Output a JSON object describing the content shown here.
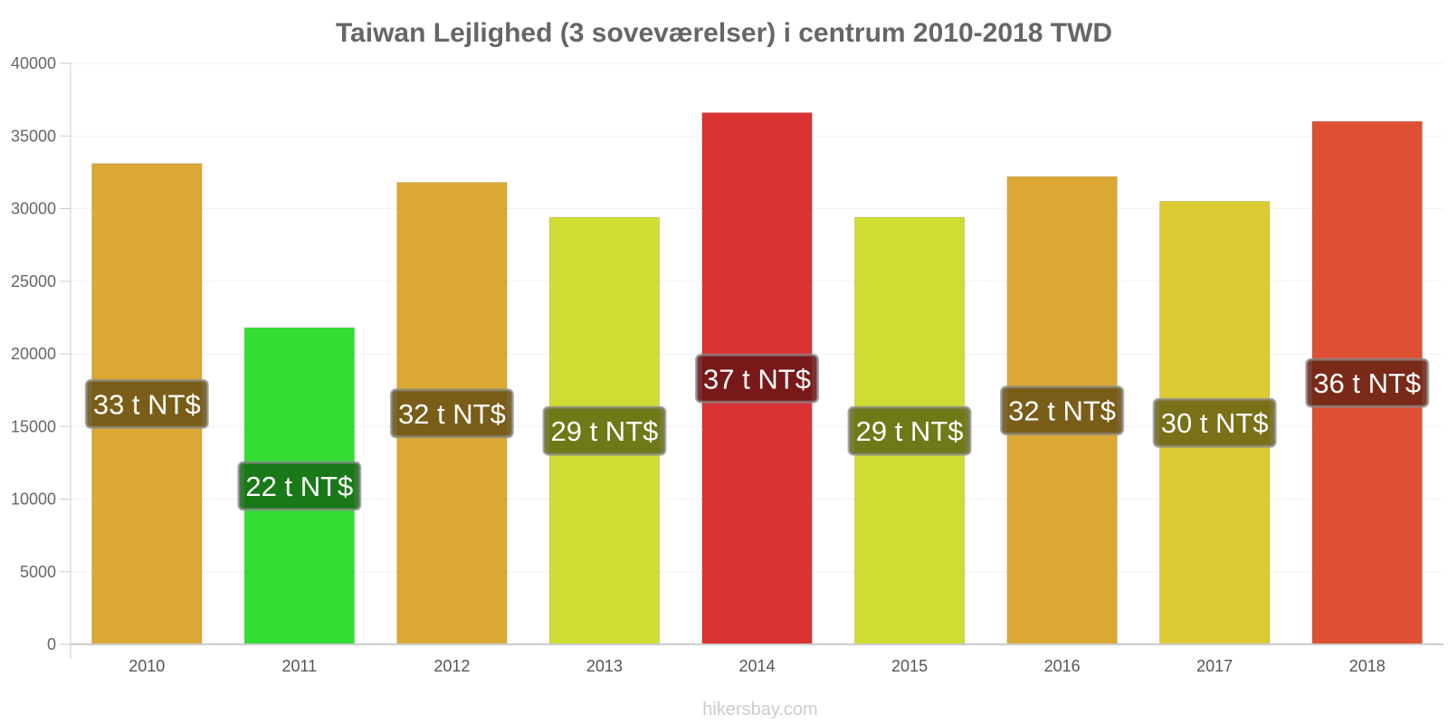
{
  "chart_data": {
    "type": "bar",
    "title": "Taiwan Lejlighed (3 soveværelser) i centrum 2010-2018 TWD",
    "xlabel": "",
    "ylabel": "",
    "categories": [
      "2010",
      "2011",
      "2012",
      "2013",
      "2014",
      "2015",
      "2016",
      "2017",
      "2018"
    ],
    "values": [
      33100,
      21800,
      31800,
      29400,
      36600,
      29400,
      32200,
      30500,
      36000
    ],
    "data_labels": [
      "33 t NT$",
      "22 t NT$",
      "32 t NT$",
      "29 t NT$",
      "37 t NT$",
      "29 t NT$",
      "32 t NT$",
      "30 t NT$",
      "36 t NT$"
    ],
    "colors": [
      "#dba833",
      "#33dd33",
      "#dba833",
      "#cfdd33",
      "#d93333",
      "#cfdd33",
      "#dba833",
      "#dccb33",
      "#dd5033"
    ],
    "label_bg_colors": [
      "#6b5214",
      "#166b14",
      "#6b5214",
      "#636b14",
      "#6b1414",
      "#636b14",
      "#6b5214",
      "#6b6314",
      "#6b2414"
    ],
    "ylim": [
      0,
      40000
    ],
    "yticks": [
      0,
      5000,
      10000,
      15000,
      20000,
      25000,
      30000,
      35000,
      40000
    ],
    "grid": true,
    "legend": "none"
  },
  "footer": {
    "credit": "hikersbay.com"
  }
}
